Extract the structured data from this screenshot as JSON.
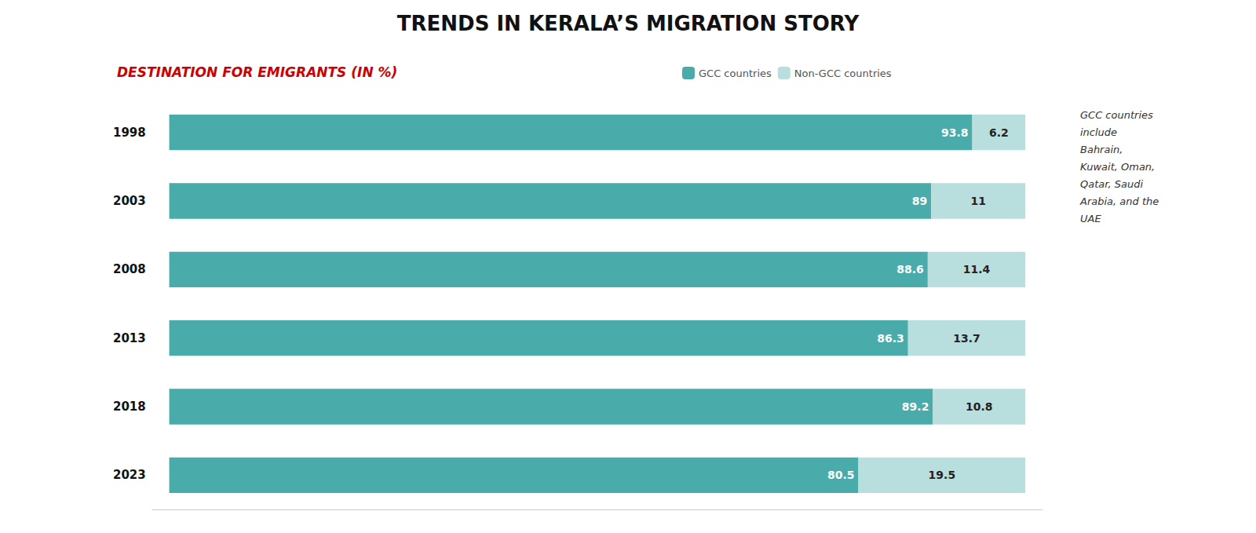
{
  "chart_data": {
    "type": "bar",
    "orientation": "horizontal",
    "stacked": true,
    "title": "TRENDS IN KERALA’S MIGRATION STORY",
    "subtitle": "DESTINATION FOR EMIGRANTS (IN %)",
    "categories": [
      "1998",
      "2003",
      "2008",
      "2013",
      "2018",
      "2023"
    ],
    "series": [
      {
        "name": "GCC countries",
        "color": "#4aabab",
        "values": [
          93.8,
          89.0,
          88.6,
          86.3,
          89.2,
          80.5
        ]
      },
      {
        "name": "Non-GCC countries",
        "color": "#b8dede",
        "values": [
          6.2,
          11.0,
          11.4,
          13.7,
          10.8,
          19.5
        ]
      }
    ],
    "xlim": [
      -2,
      102
    ],
    "tick_labels": "y",
    "grid": false,
    "legend": "top",
    "data_labels": true,
    "annotations": [
      "GCC countries",
      "include",
      "Bahrain,",
      "Kuwait, Oman,",
      "Qatar, Saudi",
      "Arabia, and the",
      "UAE"
    ]
  }
}
